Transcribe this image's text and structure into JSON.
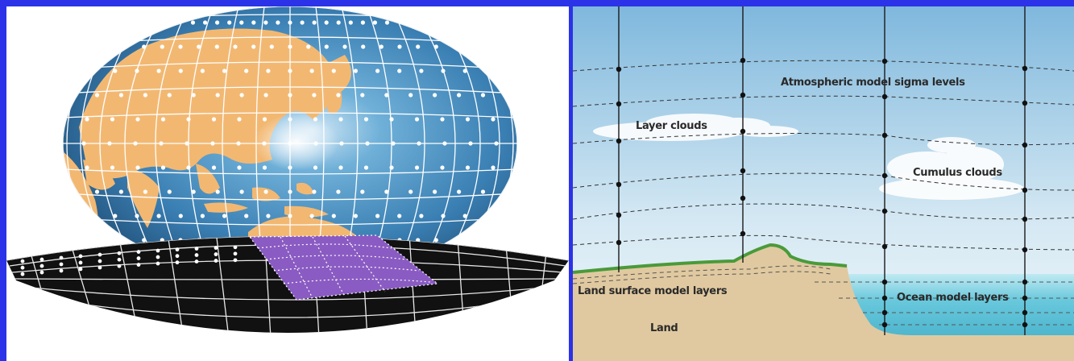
{
  "diagram": {
    "labels": {
      "sigma": "Atmospheric model sigma levels",
      "layer_clouds": "Layer clouds",
      "cumulus": "Cumulus clouds",
      "land_layers": "Land surface model layers",
      "ocean_layers": "Ocean model layers",
      "land": "Land"
    },
    "colors": {
      "background_frame": "#2b32e8",
      "ocean_globe": "#3f86b8",
      "continents": "#f2b872",
      "grid_lines": "#ffffff",
      "subgrid_region": "#8a5bc2",
      "soil": "#e0c9a0",
      "ocean": "#5cc3d8",
      "sky_top": "#8bbfe0",
      "sky_bottom": "#eaf3f8",
      "land_surface": "#4a9a3a"
    }
  }
}
